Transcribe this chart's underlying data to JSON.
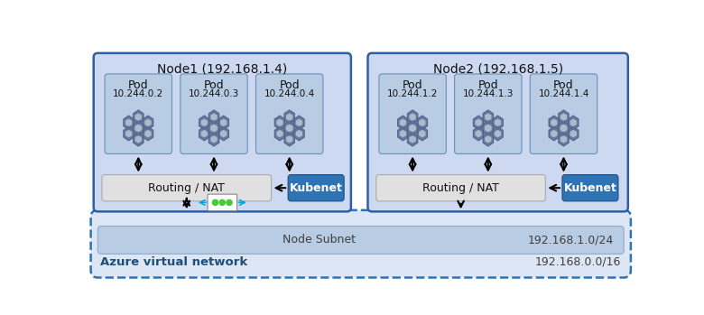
{
  "fig_width": 7.8,
  "fig_height": 3.49,
  "bg_color": "#ffffff",
  "node1_label": "Node1 (192.168.1.4)",
  "node2_label": "Node2 (192.168.1.5)",
  "node_box_color": "#ccd9f0",
  "node_box_edge": "#2e5fa3",
  "pod_box_color": "#b8cce4",
  "pod_label": "Pod",
  "pod_ips_node1": [
    "10.244.0.2",
    "10.244.0.3",
    "10.244.0.4"
  ],
  "pod_ips_node2": [
    "10.244.1.2",
    "10.244.1.3",
    "10.244.1.4"
  ],
  "routing_box_color": "#e0e0e0",
  "routing_label": "Routing / NAT",
  "kubenet_box_color": "#2e74b5",
  "kubenet_label": "Kubenet",
  "kubenet_text_color": "#ffffff",
  "azure_vnet_bg": "#dce6f5",
  "azure_vnet_label": "Azure virtual network",
  "azure_vnet_label_color": "#1f4e79",
  "azure_vnet_ip": "192.168.0.0/16",
  "azure_vnet_ip_color": "#404040",
  "subnet_box_color": "#b8cce4",
  "subnet_label": "Node Subnet",
  "subnet_label_color": "#404040",
  "subnet_ip": "192.168.1.0/24",
  "subnet_ip_color": "#404040",
  "arrow_color": "#000000",
  "dashed_border_color": "#2e74b5"
}
